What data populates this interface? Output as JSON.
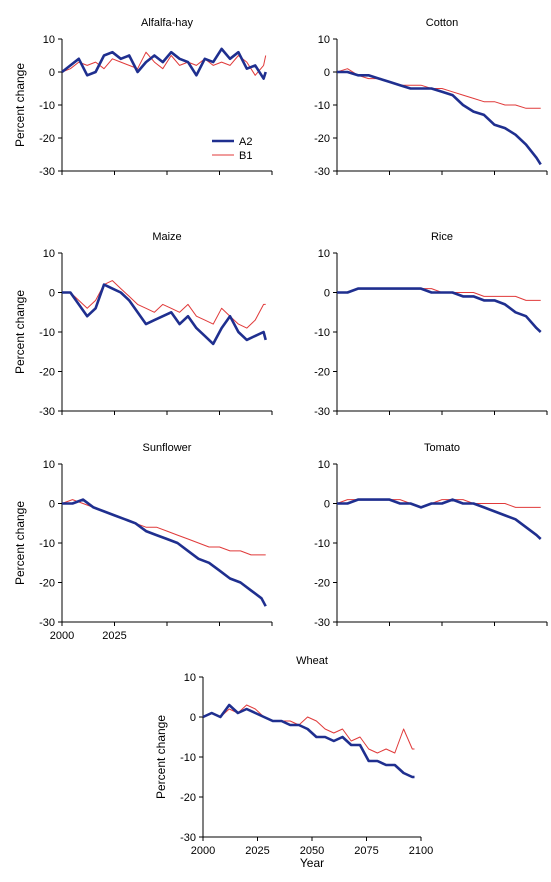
{
  "chart_data": {
    "type": "line",
    "series_styles": {
      "A2": {
        "color": "#1f2f8f"
      },
      "B1": {
        "color": "#e03a3a"
      }
    },
    "legend_placement": "bottom-right of Alfalfa-hay panel",
    "grid": false,
    "panels": [
      {
        "title": "Alfalfa-hay",
        "ylabel": "Percent change",
        "ylim": [
          -30,
          10
        ],
        "yticks": [
          10,
          0,
          -10,
          -20,
          -30
        ],
        "xlim": [
          2000,
          2100
        ],
        "xticks": [],
        "xlabel": "",
        "legend": true,
        "series": [
          {
            "name": "A2",
            "x": [
              2000,
              2004,
              2008,
              2012,
              2016,
              2020,
              2024,
              2028,
              2032,
              2036,
              2040,
              2044,
              2048,
              2052,
              2056,
              2060,
              2064,
              2068,
              2072,
              2076,
              2080,
              2084,
              2088,
              2092,
              2096,
              2097
            ],
            "y": [
              0,
              2,
              4,
              -1,
              0,
              5,
              6,
              4,
              5,
              0,
              3,
              5,
              3,
              6,
              4,
              3,
              -1,
              4,
              3,
              7,
              4,
              6,
              1,
              2,
              -2,
              0
            ]
          },
          {
            "name": "B1",
            "x": [
              2000,
              2004,
              2008,
              2012,
              2016,
              2020,
              2024,
              2028,
              2032,
              2036,
              2040,
              2044,
              2048,
              2052,
              2056,
              2060,
              2064,
              2068,
              2072,
              2076,
              2080,
              2084,
              2088,
              2092,
              2096,
              2097
            ],
            "y": [
              0,
              1,
              3,
              2,
              3,
              1,
              4,
              3,
              2,
              1,
              6,
              3,
              1,
              5,
              2,
              3,
              2,
              4,
              2,
              3,
              2,
              5,
              3,
              -1,
              2,
              5
            ]
          }
        ]
      },
      {
        "title": "Cotton",
        "ylabel": "",
        "ylim": [
          -30,
          10
        ],
        "yticks": [
          10,
          0,
          -10,
          -20,
          -30
        ],
        "xlim": [
          2000,
          2100
        ],
        "xticks": [],
        "xlabel": "",
        "legend": false,
        "series": [
          {
            "name": "A2",
            "x": [
              2000,
              2005,
              2010,
              2015,
              2020,
              2025,
              2030,
              2035,
              2040,
              2045,
              2050,
              2055,
              2060,
              2065,
              2070,
              2075,
              2080,
              2085,
              2090,
              2095,
              2097
            ],
            "y": [
              0,
              0,
              -1,
              -1,
              -2,
              -3,
              -4,
              -5,
              -5,
              -5,
              -6,
              -7,
              -10,
              -12,
              -13,
              -16,
              -17,
              -19,
              -22,
              -26,
              -28
            ]
          },
          {
            "name": "B1",
            "x": [
              2000,
              2005,
              2010,
              2015,
              2020,
              2025,
              2030,
              2035,
              2040,
              2045,
              2050,
              2055,
              2060,
              2065,
              2070,
              2075,
              2080,
              2085,
              2090,
              2095,
              2097
            ],
            "y": [
              0,
              1,
              -1,
              -2,
              -2,
              -3,
              -4,
              -4,
              -4,
              -5,
              -5,
              -6,
              -7,
              -8,
              -9,
              -9,
              -10,
              -10,
              -11,
              -11,
              -11
            ]
          }
        ]
      },
      {
        "title": "Maize",
        "ylabel": "Percent change",
        "ylim": [
          -30,
          10
        ],
        "yticks": [
          10,
          0,
          -10,
          -20,
          -30
        ],
        "xlim": [
          2000,
          2100
        ],
        "xticks": [],
        "xlabel": "",
        "legend": false,
        "series": [
          {
            "name": "A2",
            "x": [
              2000,
              2004,
              2008,
              2012,
              2016,
              2020,
              2024,
              2028,
              2032,
              2036,
              2040,
              2044,
              2048,
              2052,
              2056,
              2060,
              2064,
              2068,
              2072,
              2076,
              2080,
              2084,
              2088,
              2092,
              2096,
              2097
            ],
            "y": [
              0,
              0,
              -3,
              -6,
              -4,
              2,
              1,
              0,
              -2,
              -5,
              -8,
              -7,
              -6,
              -5,
              -8,
              -6,
              -9,
              -11,
              -13,
              -9,
              -6,
              -10,
              -12,
              -11,
              -10,
              -12
            ]
          },
          {
            "name": "B1",
            "x": [
              2000,
              2004,
              2008,
              2012,
              2016,
              2020,
              2024,
              2028,
              2032,
              2036,
              2040,
              2044,
              2048,
              2052,
              2056,
              2060,
              2064,
              2068,
              2072,
              2076,
              2080,
              2084,
              2088,
              2092,
              2096,
              2097
            ],
            "y": [
              0,
              0,
              -2,
              -4,
              -2,
              2,
              3,
              1,
              -1,
              -3,
              -4,
              -5,
              -3,
              -4,
              -5,
              -3,
              -6,
              -7,
              -8,
              -4,
              -6,
              -8,
              -9,
              -7,
              -3,
              -3
            ]
          }
        ]
      },
      {
        "title": "Rice",
        "ylabel": "",
        "ylim": [
          -30,
          10
        ],
        "yticks": [
          10,
          0,
          -10,
          -20,
          -30
        ],
        "xlim": [
          2000,
          2100
        ],
        "xticks": [],
        "xlabel": "",
        "legend": false,
        "series": [
          {
            "name": "A2",
            "x": [
              2000,
              2005,
              2010,
              2015,
              2020,
              2025,
              2030,
              2035,
              2040,
              2045,
              2050,
              2055,
              2060,
              2065,
              2070,
              2075,
              2080,
              2085,
              2090,
              2095,
              2097
            ],
            "y": [
              0,
              0,
              1,
              1,
              1,
              1,
              1,
              1,
              1,
              0,
              0,
              0,
              -1,
              -1,
              -2,
              -2,
              -3,
              -5,
              -6,
              -9,
              -10
            ]
          },
          {
            "name": "B1",
            "x": [
              2000,
              2005,
              2010,
              2015,
              2020,
              2025,
              2030,
              2035,
              2040,
              2045,
              2050,
              2055,
              2060,
              2065,
              2070,
              2075,
              2080,
              2085,
              2090,
              2095,
              2097
            ],
            "y": [
              0,
              0,
              1,
              1,
              1,
              1,
              1,
              1,
              1,
              1,
              0,
              0,
              0,
              0,
              -1,
              -1,
              -1,
              -1,
              -2,
              -2,
              -2
            ]
          }
        ]
      },
      {
        "title": "Sunflower",
        "ylabel": "Percent change",
        "ylim": [
          -30,
          10
        ],
        "yticks": [
          10,
          0,
          -10,
          -20,
          -30
        ],
        "xlim": [
          2000,
          2100
        ],
        "xticks": [
          2000,
          2025
        ],
        "xlabel": "",
        "legend": false,
        "series": [
          {
            "name": "A2",
            "x": [
              2000,
              2005,
              2010,
              2015,
              2020,
              2025,
              2030,
              2035,
              2040,
              2045,
              2050,
              2055,
              2060,
              2065,
              2070,
              2075,
              2080,
              2085,
              2090,
              2095,
              2097
            ],
            "y": [
              0,
              0,
              1,
              -1,
              -2,
              -3,
              -4,
              -5,
              -7,
              -8,
              -9,
              -10,
              -12,
              -14,
              -15,
              -17,
              -19,
              -20,
              -22,
              -24,
              -26
            ]
          },
          {
            "name": "B1",
            "x": [
              2000,
              2005,
              2010,
              2015,
              2020,
              2025,
              2030,
              2035,
              2040,
              2045,
              2050,
              2055,
              2060,
              2065,
              2070,
              2075,
              2080,
              2085,
              2090,
              2095,
              2097
            ],
            "y": [
              0,
              1,
              0,
              -1,
              -2,
              -3,
              -4,
              -5,
              -6,
              -6,
              -7,
              -8,
              -9,
              -10,
              -11,
              -11,
              -12,
              -12,
              -13,
              -13,
              -13
            ]
          }
        ]
      },
      {
        "title": "Tomato",
        "ylabel": "",
        "ylim": [
          -30,
          10
        ],
        "yticks": [
          10,
          0,
          -10,
          -20,
          -30
        ],
        "xlim": [
          2000,
          2100
        ],
        "xticks": [],
        "xlabel": "",
        "legend": false,
        "series": [
          {
            "name": "A2",
            "x": [
              2000,
              2005,
              2010,
              2015,
              2020,
              2025,
              2030,
              2035,
              2040,
              2045,
              2050,
              2055,
              2060,
              2065,
              2070,
              2075,
              2080,
              2085,
              2090,
              2095,
              2097
            ],
            "y": [
              0,
              0,
              1,
              1,
              1,
              1,
              0,
              0,
              -1,
              0,
              0,
              1,
              0,
              0,
              -1,
              -2,
              -3,
              -4,
              -6,
              -8,
              -9
            ]
          },
          {
            "name": "B1",
            "x": [
              2000,
              2005,
              2010,
              2015,
              2020,
              2025,
              2030,
              2035,
              2040,
              2045,
              2050,
              2055,
              2060,
              2065,
              2070,
              2075,
              2080,
              2085,
              2090,
              2095,
              2097
            ],
            "y": [
              0,
              1,
              1,
              1,
              1,
              1,
              1,
              0,
              -1,
              0,
              1,
              1,
              1,
              0,
              0,
              0,
              0,
              -1,
              -1,
              -1,
              -1
            ]
          }
        ]
      },
      {
        "title": "Wheat",
        "ylabel": "Percent change",
        "ylim": [
          -30,
          10
        ],
        "yticks": [
          10,
          0,
          -10,
          -20,
          -30
        ],
        "xlim": [
          2000,
          2100
        ],
        "xticks": [
          2000,
          2025,
          2050,
          2075,
          2100
        ],
        "xlabel": "Year",
        "legend": false,
        "series": [
          {
            "name": "A2",
            "x": [
              2000,
              2004,
              2008,
              2012,
              2016,
              2020,
              2024,
              2028,
              2032,
              2036,
              2040,
              2044,
              2048,
              2052,
              2056,
              2060,
              2064,
              2068,
              2072,
              2076,
              2080,
              2084,
              2088,
              2092,
              2096,
              2097
            ],
            "y": [
              0,
              1,
              0,
              3,
              1,
              2,
              1,
              0,
              -1,
              -1,
              -2,
              -2,
              -3,
              -5,
              -5,
              -6,
              -5,
              -7,
              -7,
              -11,
              -11,
              -12,
              -12,
              -14,
              -15,
              -15
            ]
          },
          {
            "name": "B1",
            "x": [
              2000,
              2004,
              2008,
              2012,
              2016,
              2020,
              2024,
              2028,
              2032,
              2036,
              2040,
              2044,
              2048,
              2052,
              2056,
              2060,
              2064,
              2068,
              2072,
              2076,
              2080,
              2084,
              2088,
              2092,
              2096,
              2097
            ],
            "y": [
              0,
              1,
              0,
              2,
              1,
              3,
              2,
              0,
              -1,
              -1,
              -1,
              -2,
              0,
              -1,
              -3,
              -4,
              -3,
              -6,
              -5,
              -8,
              -9,
              -8,
              -9,
              -3,
              -8,
              -8
            ]
          }
        ]
      }
    ]
  }
}
